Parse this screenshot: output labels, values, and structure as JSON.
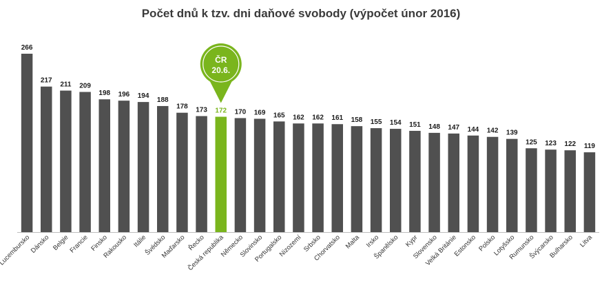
{
  "chart_data": {
    "type": "bar",
    "title": "Počet dnů k tzv. dni daňové svobody (výpočet únor 2016)",
    "xlabel": "",
    "ylabel": "",
    "ylim": [
      0,
      266
    ],
    "categories": [
      "Lucembursko",
      "Dánsko",
      "Belgie",
      "Francie",
      "Finsko",
      "Rakousko",
      "Itálie",
      "Švédsko",
      "Maďarsko",
      "Řecko",
      "Česká republika",
      "Německo",
      "Slovinsko",
      "Portugalsko",
      "Nizozemí",
      "Srbsko",
      "Chorvatsko",
      "Malta",
      "Irsko",
      "Španělsko",
      "Kypr",
      "Slovensko",
      "Velká Británie",
      "Estonsko",
      "Polsko",
      "Lotyšsko",
      "Rumunsko",
      "Švýcarsko",
      "Bulharsko",
      "Litva"
    ],
    "values": [
      266,
      217,
      211,
      209,
      198,
      196,
      194,
      188,
      178,
      173,
      172,
      170,
      169,
      165,
      162,
      162,
      161,
      158,
      155,
      154,
      151,
      148,
      147,
      144,
      142,
      139,
      125,
      123,
      122,
      119
    ],
    "highlight_index": 10,
    "grid": false,
    "legend": "none",
    "colors": {
      "bar": "#505050",
      "highlight": "#7ab51d",
      "highlight_label": "#7ab51d"
    },
    "callout": {
      "line1": "ČR",
      "line2": "20.6.",
      "color": "#7ab51d"
    }
  }
}
